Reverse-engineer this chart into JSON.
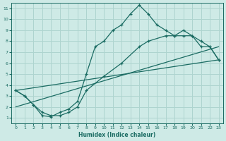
{
  "xlabel": "Humidex (Indice chaleur)",
  "bg_color": "#ceeae6",
  "line_color": "#1a6b62",
  "grid_color": "#aed4cf",
  "xlim": [
    -0.5,
    23.5
  ],
  "ylim": [
    0.5,
    11.5
  ],
  "xticks": [
    0,
    1,
    2,
    3,
    4,
    5,
    6,
    7,
    8,
    9,
    10,
    11,
    12,
    13,
    14,
    15,
    16,
    17,
    18,
    19,
    20,
    21,
    22,
    23
  ],
  "yticks": [
    1,
    2,
    3,
    4,
    5,
    6,
    7,
    8,
    9,
    10,
    11
  ],
  "line1_x": [
    0,
    1,
    2,
    3,
    4,
    5,
    6,
    7,
    8,
    9,
    10,
    11,
    12,
    13,
    14,
    15,
    16,
    17,
    18,
    19,
    20,
    21,
    22,
    23
  ],
  "line1_y": [
    3.5,
    3.0,
    2.2,
    1.2,
    1.1,
    1.5,
    1.8,
    2.5,
    5.0,
    7.5,
    8.0,
    9.0,
    9.5,
    10.5,
    11.3,
    10.5,
    9.5,
    9.0,
    8.5,
    9.0,
    8.5,
    7.5,
    7.5,
    6.3
  ],
  "line2_x": [
    0,
    1,
    2,
    3,
    4,
    5,
    6,
    7,
    8,
    10,
    12,
    14,
    15,
    17,
    18,
    19,
    20,
    21,
    22,
    23
  ],
  "line2_y": [
    3.5,
    3.0,
    2.2,
    1.5,
    1.2,
    1.2,
    1.5,
    2.0,
    3.5,
    4.8,
    6.0,
    7.5,
    8.0,
    8.5,
    8.5,
    8.5,
    8.5,
    8.0,
    7.5,
    6.3
  ],
  "line3_x": [
    0,
    23
  ],
  "line3_y": [
    3.5,
    6.3
  ],
  "line4_x": [
    0,
    23
  ],
  "line4_y": [
    2.0,
    7.5
  ]
}
